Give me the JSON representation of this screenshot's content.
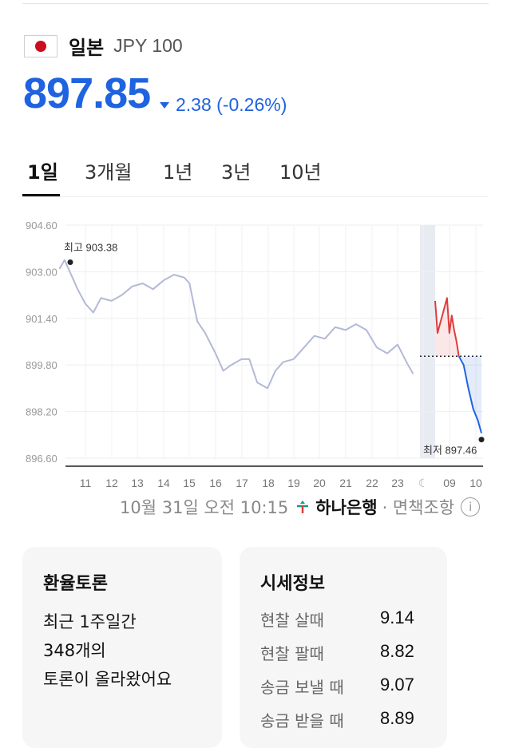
{
  "header": {
    "country": "일본",
    "code": "JPY 100"
  },
  "price": {
    "value": "897.85",
    "change": "2.38 (-0.26%)",
    "direction": "down",
    "color": "#1f63e0"
  },
  "tabs": [
    {
      "label": "1일",
      "active": true
    },
    {
      "label": "3개월",
      "active": false
    },
    {
      "label": "1년",
      "active": false
    },
    {
      "label": "3년",
      "active": false
    },
    {
      "label": "10년",
      "active": false
    }
  ],
  "chart_data": {
    "type": "line",
    "y_ticks": [
      "904.60",
      "903.00",
      "901.40",
      "899.80",
      "898.20",
      "896.60"
    ],
    "x_ticks": [
      "11",
      "12",
      "13",
      "14",
      "15",
      "16",
      "17",
      "18",
      "19",
      "20",
      "21",
      "22",
      "23",
      "☾",
      "09",
      "10"
    ],
    "high_label": "최고 903.38",
    "low_label": "최저 897.46",
    "ylim": [
      896.6,
      904.6
    ],
    "reference_value": 900.1,
    "series": [
      {
        "name": "overnight",
        "color": "#b3b9d6",
        "points": [
          [
            10.0,
            903.1
          ],
          [
            10.2,
            903.4
          ],
          [
            10.4,
            903.0
          ],
          [
            10.7,
            902.4
          ],
          [
            11.0,
            901.9
          ],
          [
            11.3,
            901.6
          ],
          [
            11.6,
            902.1
          ],
          [
            12.0,
            902.0
          ],
          [
            12.4,
            902.2
          ],
          [
            12.8,
            902.5
          ],
          [
            13.2,
            902.6
          ],
          [
            13.6,
            902.4
          ],
          [
            14.0,
            902.7
          ],
          [
            14.4,
            902.9
          ],
          [
            14.8,
            902.8
          ],
          [
            15.0,
            902.6
          ],
          [
            15.3,
            901.3
          ],
          [
            15.6,
            900.9
          ],
          [
            16.0,
            900.2
          ],
          [
            16.3,
            899.6
          ],
          [
            16.6,
            899.8
          ],
          [
            17.0,
            900.0
          ],
          [
            17.3,
            900.0
          ],
          [
            17.6,
            899.2
          ],
          [
            18.0,
            899.0
          ],
          [
            18.3,
            899.6
          ],
          [
            18.6,
            899.9
          ],
          [
            19.0,
            900.0
          ],
          [
            19.4,
            900.4
          ],
          [
            19.8,
            900.8
          ],
          [
            20.2,
            900.7
          ],
          [
            20.6,
            901.1
          ],
          [
            21.0,
            901.0
          ],
          [
            21.4,
            901.2
          ],
          [
            21.8,
            901.0
          ],
          [
            22.2,
            900.4
          ],
          [
            22.6,
            900.2
          ],
          [
            23.0,
            900.5
          ],
          [
            23.4,
            899.8
          ],
          [
            23.6,
            899.5
          ]
        ]
      },
      {
        "name": "morning_up",
        "color": "#e03c3c",
        "points": [
          [
            9.0,
            902.0
          ],
          [
            9.1,
            900.9
          ],
          [
            9.3,
            901.5
          ],
          [
            9.5,
            902.1
          ],
          [
            9.6,
            900.9
          ],
          [
            9.7,
            901.5
          ],
          [
            9.8,
            901.0
          ],
          [
            9.9,
            900.6
          ],
          [
            10.0,
            900.1
          ]
        ]
      },
      {
        "name": "morning_down",
        "color": "#1f63e0",
        "points": [
          [
            10.0,
            900.1
          ],
          [
            10.2,
            899.8
          ],
          [
            10.4,
            899.0
          ],
          [
            10.6,
            898.3
          ],
          [
            10.8,
            897.9
          ],
          [
            10.95,
            897.46
          ]
        ]
      }
    ]
  },
  "updated": {
    "time": "10월 31일 오전 10:15",
    "bank": "하나은행",
    "suffix": "· 면책조항"
  },
  "forum": {
    "title": "환율토론",
    "lines": [
      "최근 1주일간",
      "348개의",
      "토론이 올라왔어요"
    ]
  },
  "market": {
    "title": "시세정보",
    "rows": [
      {
        "label": "현찰 살때",
        "value": "9.14"
      },
      {
        "label": "현찰 팔때",
        "value": "8.82"
      },
      {
        "label": "송금 보낼 때",
        "value": "9.07"
      },
      {
        "label": "송금 받을 때",
        "value": "8.89"
      }
    ]
  }
}
